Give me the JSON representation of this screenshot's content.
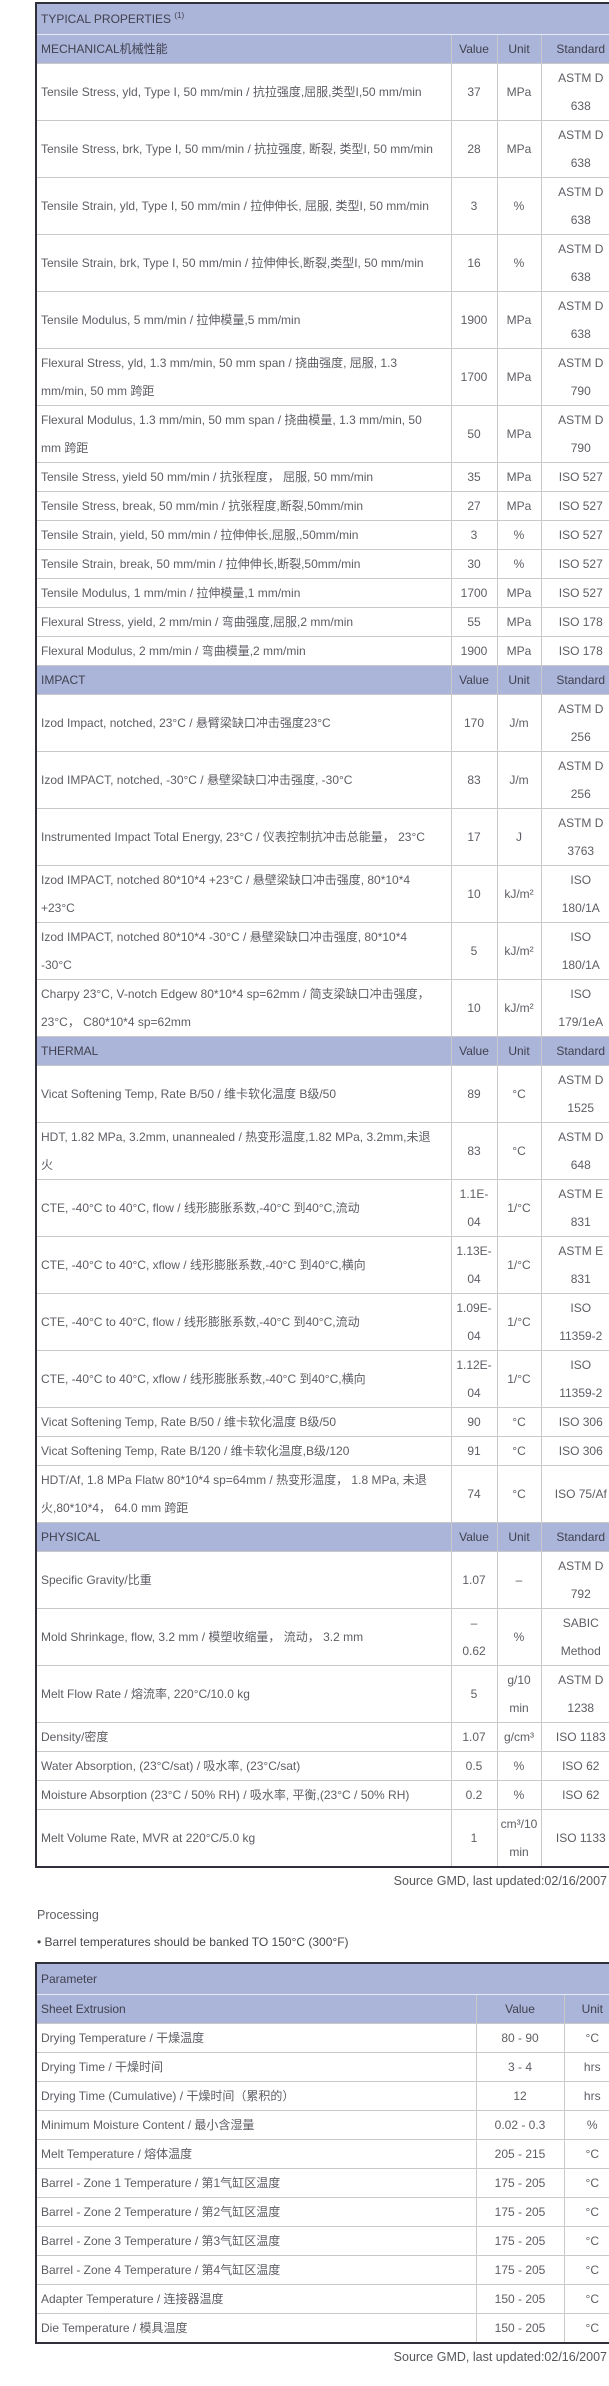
{
  "colors": {
    "header_bg": "#abb4d9",
    "outer_border": "#30303a",
    "grid_line": "#c9c9c9",
    "body_text": "#5d5e64"
  },
  "table1": {
    "title": "TYPICAL PROPERTIES ",
    "title_sup": "(1)",
    "columns": [
      "Value",
      "Unit",
      "Standard"
    ],
    "sections": [
      {
        "label": "MECHANICAL机械性能",
        "rows": [
          {
            "name": "Tensile Stress, yld, Type I, 50 mm/min / 抗拉强度,屈服,类型I,50 mm/min",
            "value": "37",
            "unit": "MPa",
            "standard": "ASTM D\n638"
          },
          {
            "name": "Tensile Stress, brk, Type I, 50 mm/min / 抗拉强度, 断裂, 类型I, 50 mm/min",
            "value": "28",
            "unit": "MPa",
            "standard": "ASTM D\n638"
          },
          {
            "name": "Tensile Strain, yld, Type I, 50 mm/min / 拉伸伸长, 屈服, 类型I, 50 mm/min",
            "value": "3",
            "unit": "%",
            "standard": "ASTM D\n638"
          },
          {
            "name": "Tensile Strain, brk, Type I, 50 mm/min / 拉伸伸长,断裂,类型I, 50 mm/min",
            "value": "16",
            "unit": "%",
            "standard": "ASTM D\n638"
          },
          {
            "name": "Tensile Modulus, 5 mm/min / 拉伸模量,5 mm/min",
            "value": "1900",
            "unit": "MPa",
            "standard": "ASTM D\n638"
          },
          {
            "name": "Flexural Stress, yld, 1.3 mm/min, 50 mm span / 挠曲强度, 屈服, 1.3 mm/min, 50 mm 跨距",
            "value": "1700",
            "unit": "MPa",
            "standard": "ASTM D\n790"
          },
          {
            "name": "Flexural Modulus, 1.3 mm/min, 50 mm span / 挠曲模量, 1.3 mm/min, 50 mm 跨距",
            "value": "50",
            "unit": "MPa",
            "standard": "ASTM D\n790"
          },
          {
            "name": "Tensile Stress, yield 50 mm/min / 抗张程度， 屈服, 50 mm/min",
            "value": "35",
            "unit": "MPa",
            "standard": "ISO 527"
          },
          {
            "name": "Tensile Stress, break, 50 mm/min / 抗张程度,断裂,50mm/min",
            "value": "27",
            "unit": "MPa",
            "standard": "ISO 527"
          },
          {
            "name": "Tensile Strain, yield, 50 mm/min / 拉伸伸长,屈服,,50mm/min",
            "value": "3",
            "unit": "%",
            "standard": "ISO 527"
          },
          {
            "name": "Tensile Strain, break, 50 mm/min / 拉伸伸长,断裂,50mm/min",
            "value": "30",
            "unit": "%",
            "standard": "ISO 527"
          },
          {
            "name": "Tensile Modulus, 1 mm/min / 拉伸模量,1 mm/min",
            "value": "1700",
            "unit": "MPa",
            "standard": "ISO 527"
          },
          {
            "name": "Flexural Stress, yield, 2 mm/min / 弯曲强度,屈服,2 mm/min",
            "value": "55",
            "unit": "MPa",
            "standard": "ISO 178"
          },
          {
            "name": "Flexural Modulus, 2 mm/min / 弯曲模量,2 mm/min",
            "value": "1900",
            "unit": "MPa",
            "standard": "ISO 178"
          }
        ]
      },
      {
        "label": "IMPACT",
        "rows": [
          {
            "name": "Izod Impact, notched, 23°C / 悬臂梁缺口冲击强度23°C",
            "value": "170",
            "unit": "J/m",
            "standard": "ASTM D\n256"
          },
          {
            "name": "Izod IMPACT, notched, -30°C / 悬壁梁缺口冲击强度, -30°C",
            "value": "83",
            "unit": "J/m",
            "standard": "ASTM D\n256"
          },
          {
            "name": "Instrumented Impact Total Energy, 23°C / 仪表控制抗冲击总能量， 23°C",
            "value": "17",
            "unit": "J",
            "standard": "ASTM D\n3763"
          },
          {
            "name": "Izod IMPACT, notched 80*10*4 +23°C / 悬壁梁缺口冲击强度, 80*10*4 +23°C",
            "value": "10",
            "unit": "kJ/m²",
            "standard": "ISO\n180/1A"
          },
          {
            "name": "Izod IMPACT, notched 80*10*4 -30°C / 悬壁梁缺口冲击强度, 80*10*4 -30°C",
            "value": "5",
            "unit": "kJ/m²",
            "standard": "ISO\n180/1A"
          },
          {
            "name": "Charpy 23°C, V-notch Edgew 80*10*4 sp=62mm / 简支梁缺口冲击强度， 23°C， C80*10*4 sp=62mm",
            "value": "10",
            "unit": "kJ/m²",
            "standard": "ISO\n179/1eA"
          }
        ]
      },
      {
        "label": "THERMAL",
        "rows": [
          {
            "name": "Vicat Softening Temp, Rate B/50 / 维卡软化温度 B级/50",
            "value": "89",
            "unit": "°C",
            "standard": "ASTM D\n1525"
          },
          {
            "name": "HDT, 1.82 MPa, 3.2mm, unannealed / 热变形温度,1.82 MPa, 3.2mm,未退火",
            "value": "83",
            "unit": "°C",
            "standard": "ASTM D\n648"
          },
          {
            "name": "CTE, -40°C to 40°C, flow / 线形膨胀系数,-40°C 到40°C,流动",
            "value": "1.1E-\n04",
            "unit": "1/°C",
            "standard": "ASTM E\n831"
          },
          {
            "name": "CTE, -40°C to 40°C, xflow / 线形膨胀系数,-40°C 到40°C,横向",
            "value": "1.13E-\n04",
            "unit": "1/°C",
            "standard": "ASTM E\n831"
          },
          {
            "name": "CTE, -40°C to 40°C, flow / 线形膨胀系数,-40°C 到40°C,流动",
            "value": "1.09E-\n04",
            "unit": "1/°C",
            "standard": "ISO\n11359-2"
          },
          {
            "name": "CTE, -40°C to 40°C, xflow / 线形膨胀系数,-40°C 到40°C,横向",
            "value": "1.12E-\n04",
            "unit": "1/°C",
            "standard": "ISO\n11359-2"
          },
          {
            "name": "Vicat Softening Temp, Rate B/50 / 维卡软化温度 B级/50",
            "value": "90",
            "unit": "°C",
            "standard": "ISO 306"
          },
          {
            "name": "Vicat Softening Temp, Rate B/120 / 维卡软化温度,B级/120",
            "value": "91",
            "unit": "°C",
            "standard": "ISO 306"
          },
          {
            "name": "HDT/Af, 1.8 MPa Flatw 80*10*4 sp=64mm / 热变形温度， 1.8 MPa, 未退火,80*10*4， 64.0 mm 跨距",
            "value": "74",
            "unit": "°C",
            "standard": "ISO 75/Af"
          }
        ]
      },
      {
        "label": "PHYSICAL",
        "rows": [
          {
            "name": "Specific Gravity/比重",
            "value": "1.07",
            "unit": "–",
            "standard": "ASTM D\n792"
          },
          {
            "name": "Mold Shrinkage, flow, 3.2 mm / 模塑收缩量， 流动， 3.2 mm",
            "value": "–\n0.62",
            "unit": "%",
            "standard": "SABIC\nMethod"
          },
          {
            "name": "Melt Flow Rate / 熔流率, 220°C/10.0 kg",
            "value": "5",
            "unit": "g/10\nmin",
            "standard": "ASTM D\n1238"
          },
          {
            "name": "Density/密度",
            "value": "1.07",
            "unit": "g/cm³",
            "standard": "ISO 1183"
          },
          {
            "name": "Water Absorption, (23°C/sat) / 吸水率, (23°C/sat)",
            "value": "0.5",
            "unit": "%",
            "standard": "ISO 62"
          },
          {
            "name": "Moisture Absorption (23°C / 50% RH) / 吸水率, 平衡,(23°C / 50% RH)",
            "value": "0.2",
            "unit": "%",
            "standard": "ISO 62"
          },
          {
            "name": "Melt Volume Rate, MVR at 220°C/5.0 kg",
            "value": "1",
            "unit": "cm³/10\nmin",
            "standard": "ISO 1133"
          }
        ]
      }
    ],
    "source": "Source GMD, last updated:02/16/2007"
  },
  "processing": {
    "heading": "Processing",
    "bullet_marker": "•",
    "bullet_text": " Barrel temperatures should be banked TO 150°C (300°F)"
  },
  "table2": {
    "title": "Parameter",
    "subheader": "Sheet Extrusion",
    "columns": [
      "Value",
      "Unit"
    ],
    "rows": [
      {
        "name": "Drying Temperature / 干燥温度",
        "value": "80 - 90",
        "unit": "°C"
      },
      {
        "name": "Drying Time / 干燥时间",
        "value": "3 - 4",
        "unit": "hrs"
      },
      {
        "name": "Drying Time (Cumulative) / 干燥时间（累积的）",
        "value": "12",
        "unit": "hrs"
      },
      {
        "name": "Minimum Moisture Content / 最小含湿量",
        "value": "0.02 - 0.3",
        "unit": "%"
      },
      {
        "name": "Melt Temperature / 熔体温度",
        "value": "205 - 215",
        "unit": "°C"
      },
      {
        "name": "Barrel - Zone 1 Temperature / 第1气缸区温度",
        "value": "175 - 205",
        "unit": "°C"
      },
      {
        "name": "Barrel - Zone 2 Temperature / 第2气缸区温度",
        "value": "175 - 205",
        "unit": "°C"
      },
      {
        "name": "Barrel - Zone 3 Temperature / 第3气缸区温度",
        "value": "175 - 205",
        "unit": "°C"
      },
      {
        "name": "Barrel - Zone 4 Temperature / 第4气缸区温度",
        "value": "175 - 205",
        "unit": "°C"
      },
      {
        "name": "Adapter Temperature / 连接器温度",
        "value": "150 - 205",
        "unit": "°C"
      },
      {
        "name": "Die Temperature / 模具温度",
        "value": "150 - 205",
        "unit": "°C"
      }
    ],
    "source": "Source GMD, last updated:02/16/2007"
  }
}
